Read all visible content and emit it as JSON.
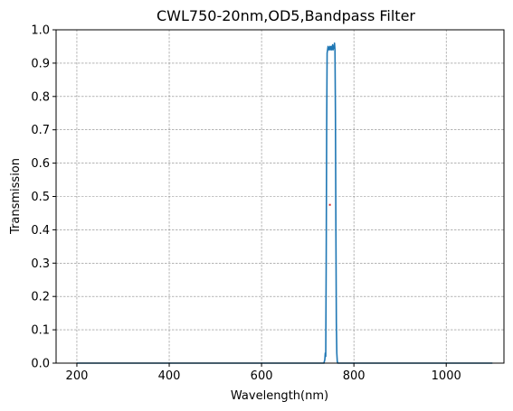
{
  "chart_data": {
    "type": "line",
    "title": "CWL750-20nm,OD5,Bandpass Filter",
    "xlabel": "Wavelength(nm)",
    "ylabel": "Transmission",
    "xlim": [
      155,
      1125
    ],
    "ylim": [
      0,
      1.0
    ],
    "xticks": [
      200,
      400,
      600,
      800,
      1000
    ],
    "yticks": [
      0.0,
      0.1,
      0.2,
      0.3,
      0.4,
      0.5,
      0.6,
      0.7,
      0.8,
      0.9,
      1.0
    ],
    "grid": true,
    "series": [
      {
        "color": "#1f77b4",
        "x": [
          200,
          300,
          400,
          500,
          600,
          700,
          735,
          737,
          738,
          739,
          740,
          741,
          742,
          743,
          744,
          745,
          746,
          747,
          748,
          749,
          750,
          751,
          752,
          753,
          754,
          755,
          756,
          757,
          758,
          759,
          760,
          761,
          762,
          763,
          764,
          765,
          770,
          800,
          900,
          1000,
          1100
        ],
        "y": [
          0,
          0,
          0,
          0,
          0,
          0,
          0,
          0.01,
          0.03,
          0.02,
          0.3,
          0.7,
          0.93,
          0.94,
          0.95,
          0.945,
          0.94,
          0.945,
          0.95,
          0.94,
          0.945,
          0.95,
          0.94,
          0.945,
          0.955,
          0.94,
          0.95,
          0.945,
          0.96,
          0.94,
          0.75,
          0.4,
          0.12,
          0.03,
          0.005,
          0,
          0,
          0,
          0,
          0,
          0
        ]
      }
    ],
    "markers": [
      {
        "x": 748,
        "y": 0.475,
        "color": "#d62728"
      }
    ]
  }
}
